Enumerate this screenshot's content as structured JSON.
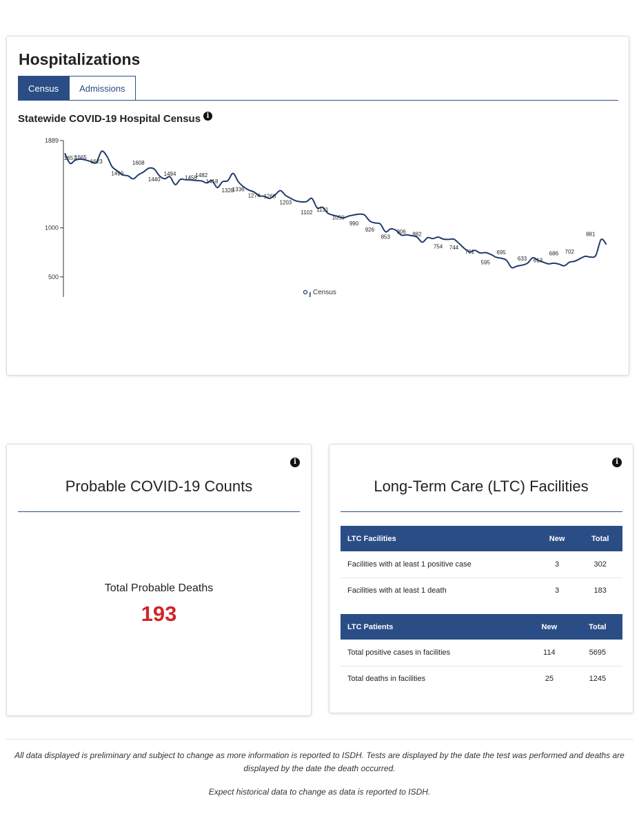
{
  "hospitalizations": {
    "title": "Hospitalizations",
    "tabs": [
      {
        "label": "Census",
        "active": true
      },
      {
        "label": "Admissions",
        "active": false
      }
    ],
    "chart_title": "Statewide COVID-19 Hospital Census",
    "info_icon": "info-icon"
  },
  "chart_data": {
    "type": "line",
    "title": "Statewide COVID-19 Hospital Census",
    "ylim": [
      0,
      1889
    ],
    "yticks": [
      0,
      500,
      1000,
      1889
    ],
    "x_range": [
      "2020-04-04",
      "2020-07-15"
    ],
    "xticks": [
      "2020-04-14",
      "2020-04-23",
      "2020-05-02",
      "2020-05-11",
      "2020-05-20",
      "2020-05-29",
      "2020-06-07",
      "2020-06-16",
      "2020-06-25",
      "2020-07-04",
      "2020-07-15"
    ],
    "legend": "bottom",
    "grid": false,
    "series": [
      {
        "name": "Census",
        "color": "#1f3a6e",
        "points": [
          [
            "2020-04-04",
            1760
          ],
          [
            "2020-04-05",
            1657
          ],
          [
            "2020-04-06",
            1690
          ],
          [
            "2020-04-07",
            1700
          ],
          [
            "2020-04-08",
            1690
          ],
          [
            "2020-04-09",
            1675
          ],
          [
            "2020-04-10",
            1665
          ],
          [
            "2020-04-11",
            1780
          ],
          [
            "2020-04-12",
            1730
          ],
          [
            "2020-04-13",
            1623
          ],
          [
            "2020-04-14",
            1580
          ],
          [
            "2020-04-15",
            1540
          ],
          [
            "2020-04-16",
            1530
          ],
          [
            "2020-04-17",
            1499
          ],
          [
            "2020-04-18",
            1540
          ],
          [
            "2020-04-19",
            1570
          ],
          [
            "2020-04-20",
            1608
          ],
          [
            "2020-04-21",
            1600
          ],
          [
            "2020-04-22",
            1530
          ],
          [
            "2020-04-23",
            1500
          ],
          [
            "2020-04-24",
            1520
          ],
          [
            "2020-04-25",
            1440
          ],
          [
            "2020-04-26",
            1494
          ],
          [
            "2020-04-27",
            1490
          ],
          [
            "2020-04-28",
            1488
          ],
          [
            "2020-04-29",
            1482
          ],
          [
            "2020-04-30",
            1478
          ],
          [
            "2020-05-01",
            1458
          ],
          [
            "2020-05-02",
            1482
          ],
          [
            "2020-05-03",
            1410
          ],
          [
            "2020-05-04",
            1470
          ],
          [
            "2020-05-05",
            1480
          ],
          [
            "2020-05-06",
            1555
          ],
          [
            "2020-05-07",
            1470
          ],
          [
            "2020-05-08",
            1418
          ],
          [
            "2020-05-09",
            1385
          ],
          [
            "2020-05-10",
            1365
          ],
          [
            "2020-05-11",
            1328
          ],
          [
            "2020-05-12",
            1320
          ],
          [
            "2020-05-13",
            1300
          ],
          [
            "2020-05-14",
            1336
          ],
          [
            "2020-05-15",
            1380
          ],
          [
            "2020-05-16",
            1330
          ],
          [
            "2020-05-17",
            1300
          ],
          [
            "2020-05-18",
            1274
          ],
          [
            "2020-05-19",
            1265
          ],
          [
            "2020-05-20",
            1268
          ],
          [
            "2020-05-21",
            1300
          ],
          [
            "2020-05-22",
            1203
          ],
          [
            "2020-05-23",
            1210
          ],
          [
            "2020-05-24",
            1150
          ],
          [
            "2020-05-25",
            1130
          ],
          [
            "2020-05-26",
            1115
          ],
          [
            "2020-05-27",
            1102
          ],
          [
            "2020-05-28",
            1120
          ],
          [
            "2020-05-29",
            1131
          ],
          [
            "2020-05-30",
            1140
          ],
          [
            "2020-05-31",
            1131
          ],
          [
            "2020-06-01",
            1070
          ],
          [
            "2020-06-02",
            1050
          ],
          [
            "2020-06-03",
            1040
          ],
          [
            "2020-06-04",
            960
          ],
          [
            "2020-06-05",
            990
          ],
          [
            "2020-06-06",
            975
          ],
          [
            "2020-06-07",
            926
          ],
          [
            "2020-06-08",
            928
          ],
          [
            "2020-06-09",
            920
          ],
          [
            "2020-06-10",
            905
          ],
          [
            "2020-06-11",
            853
          ],
          [
            "2020-06-12",
            900
          ],
          [
            "2020-06-13",
            890
          ],
          [
            "2020-06-14",
            906
          ],
          [
            "2020-06-15",
            885
          ],
          [
            "2020-06-16",
            882
          ],
          [
            "2020-06-17",
            884
          ],
          [
            "2020-06-18",
            840
          ],
          [
            "2020-06-19",
            790
          ],
          [
            "2020-06-20",
            754
          ],
          [
            "2020-06-21",
            770
          ],
          [
            "2020-06-22",
            744
          ],
          [
            "2020-06-23",
            748
          ],
          [
            "2020-06-24",
            730
          ],
          [
            "2020-06-25",
            701
          ],
          [
            "2020-06-26",
            690
          ],
          [
            "2020-06-27",
            670
          ],
          [
            "2020-06-28",
            595
          ],
          [
            "2020-06-29",
            610
          ],
          [
            "2020-06-30",
            620
          ],
          [
            "2020-07-01",
            640
          ],
          [
            "2020-07-02",
            695
          ],
          [
            "2020-07-03",
            670
          ],
          [
            "2020-07-04",
            650
          ],
          [
            "2020-07-05",
            633
          ],
          [
            "2020-07-06",
            640
          ],
          [
            "2020-07-07",
            630
          ],
          [
            "2020-07-08",
            613
          ],
          [
            "2020-07-09",
            650
          ],
          [
            "2020-07-10",
            660
          ],
          [
            "2020-07-11",
            686
          ],
          [
            "2020-07-12",
            710
          ],
          [
            "2020-07-13",
            702
          ],
          [
            "2020-07-14",
            720
          ],
          [
            "2020-07-15",
            881
          ],
          [
            "2020-07-16",
            830
          ]
        ],
        "labels": [
          [
            "2020-04-05",
            1657
          ],
          [
            "2020-04-07",
            1665
          ],
          [
            "2020-04-10",
            1623
          ],
          [
            "2020-04-14",
            1499
          ],
          [
            "2020-04-18",
            1608
          ],
          [
            "2020-04-21",
            1440
          ],
          [
            "2020-04-24",
            1494
          ],
          [
            "2020-04-28",
            1458
          ],
          [
            "2020-04-30",
            1482
          ],
          [
            "2020-05-02",
            1418
          ],
          [
            "2020-05-05",
            1328
          ],
          [
            "2020-05-07",
            1336
          ],
          [
            "2020-05-10",
            1274
          ],
          [
            "2020-05-13",
            1268
          ],
          [
            "2020-05-16",
            1203
          ],
          [
            "2020-05-20",
            1102
          ],
          [
            "2020-05-23",
            1131
          ],
          [
            "2020-05-26",
            1050
          ],
          [
            "2020-05-29",
            990
          ],
          [
            "2020-06-01",
            926
          ],
          [
            "2020-06-04",
            853
          ],
          [
            "2020-06-07",
            906
          ],
          [
            "2020-06-10",
            882
          ],
          [
            "2020-06-14",
            754
          ],
          [
            "2020-06-17",
            744
          ],
          [
            "2020-06-20",
            701
          ],
          [
            "2020-06-23",
            595
          ],
          [
            "2020-06-26",
            695
          ],
          [
            "2020-06-30",
            633
          ],
          [
            "2020-07-03",
            613
          ],
          [
            "2020-07-06",
            686
          ],
          [
            "2020-07-09",
            702
          ],
          [
            "2020-07-13",
            881
          ]
        ]
      }
    ]
  },
  "probable": {
    "title": "Probable COVID-19 Counts",
    "label": "Total Probable Deaths",
    "value": "193",
    "value_color": "#d1252b"
  },
  "ltc": {
    "title": "Long-Term Care (LTC) Facilities",
    "facilities_table": {
      "headers": [
        "LTC Facilities",
        "New",
        "Total"
      ],
      "rows": [
        [
          "Facilities with at least 1 positive case",
          "3",
          "302"
        ],
        [
          "Facilities with at least 1 death",
          "3",
          "183"
        ]
      ]
    },
    "patients_table": {
      "headers": [
        "LTC Patients",
        "New",
        "Total"
      ],
      "rows": [
        [
          "Total positive cases in facilities",
          "114",
          "5695"
        ],
        [
          "Total deaths in facilities",
          "25",
          "1245"
        ]
      ]
    }
  },
  "footer": {
    "note1": "All data displayed is preliminary and subject to change as more information is reported to ISDH. Tests are displayed by the date the test was performed and deaths are displayed by the date the death occurred.",
    "note2": "Expect historical data to change as data is reported to ISDH."
  },
  "colors": {
    "brand_blue": "#2a4d86",
    "line_blue": "#1f3a6e",
    "alert_red": "#d1252b"
  }
}
